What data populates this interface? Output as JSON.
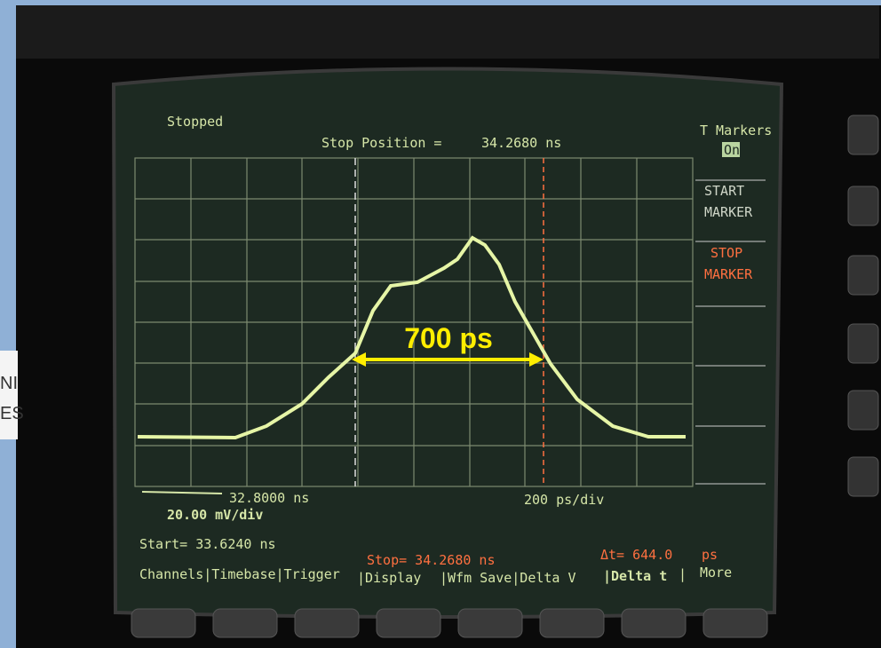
{
  "header": {
    "status": "Stopped",
    "position_label": "Stop Position =",
    "position_value": "34.2680 ns"
  },
  "side_menu": {
    "title": "T Markers",
    "toggle": "On",
    "start_marker": [
      "START",
      "MARKER"
    ],
    "stop_marker": [
      "STOP",
      "MARKER"
    ]
  },
  "annotation": {
    "label": "700 ps"
  },
  "scale": {
    "offset": "32.8000 ns",
    "time_per_div": "200 ps/div",
    "volts_per_div": "20.00 mV/div"
  },
  "readout": {
    "start": "Start= 33.6240 ns",
    "stop": "Stop= 34.2680 ns",
    "delta_label": "Δt= 644.0",
    "delta_unit": "ps"
  },
  "menu": [
    "Channels|Timebase|Trigger",
    "|Display",
    "|Wfm Save|Delta V",
    "|Delta t",
    "|",
    "More"
  ],
  "background_text": [
    "NI",
    "ES"
  ]
}
